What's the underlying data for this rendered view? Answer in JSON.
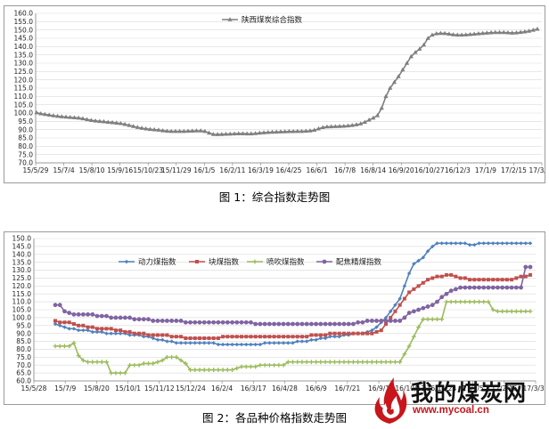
{
  "figure1_caption": "图 1：综合指数走势图",
  "figure2_caption": "图 2：各品种价格指数走势图",
  "watermark": {
    "name": "我的煤炭网",
    "url": "www.mycoal.cn"
  },
  "colors": {
    "composite": "#7f7f7f",
    "power": "#4f81bd",
    "lump": "#c0504d",
    "injection": "#9bbb59",
    "coking": "#8064a2",
    "grid": "#d9d9d9",
    "axis": "#808080"
  },
  "chart_data": [
    {
      "type": "line",
      "title": "",
      "xlabel": "",
      "ylabel": "",
      "ylim": [
        70,
        160
      ],
      "yticks": [
        "70.0",
        "75.0",
        "80.0",
        "85.0",
        "90.0",
        "95.0",
        "100.0",
        "105.0",
        "110.0",
        "115.0",
        "120.0",
        "125.0",
        "130.0",
        "135.0",
        "140.0",
        "145.0",
        "150.0",
        "155.0",
        "160.0"
      ],
      "x_tick_labels": [
        "15/5/29",
        "15/7/4",
        "15/8/10",
        "15/9/16",
        "15/10/23",
        "15/11/29",
        "16/1/5",
        "16/2/11",
        "16/3/19",
        "16/4/25",
        "16/6/1",
        "16/7/8",
        "16/8/14",
        "16/9/20",
        "16/10/27",
        "16/12/3",
        "17/1/9",
        "17/2/15",
        "17/3/24"
      ],
      "grid": "horizontal",
      "legend_position": "top-center",
      "series": [
        {
          "name": "陕西煤炭综合指数",
          "marker": "triangle",
          "values": [
            100.2,
            99.6,
            99.2,
            98.8,
            98.4,
            98.1,
            97.8,
            97.6,
            97.4,
            97.2,
            97.0,
            96.6,
            96.1,
            95.6,
            95.3,
            95.0,
            94.8,
            94.5,
            94.3,
            94.0,
            93.7,
            93.2,
            92.6,
            92.0,
            91.4,
            90.9,
            90.5,
            90.2,
            90.0,
            89.8,
            89.4,
            89.1,
            89.0,
            89.0,
            89.0,
            89.0,
            89.1,
            89.2,
            89.3,
            89.3,
            89.0,
            88.0,
            87.2,
            87.1,
            87.2,
            87.3,
            87.4,
            87.5,
            87.6,
            87.6,
            87.5,
            87.5,
            87.7,
            88.0,
            88.2,
            88.4,
            88.5,
            88.6,
            88.7,
            88.8,
            88.9,
            88.9,
            89.0,
            89.0,
            89.1,
            89.3,
            89.7,
            90.5,
            91.3,
            91.7,
            91.8,
            91.9,
            92.0,
            92.1,
            92.3,
            92.6,
            93.0,
            93.5,
            94.5,
            95.8,
            97.0,
            98.5,
            103.0,
            110.0,
            115.0,
            118.5,
            122.0,
            126.0,
            130.0,
            134.0,
            136.5,
            138.5,
            141.0,
            145.0,
            147.0,
            147.8,
            148.0,
            147.9,
            147.6,
            147.2,
            147.0,
            147.0,
            147.1,
            147.3,
            147.5,
            147.8,
            148.0,
            148.2,
            148.4,
            148.5,
            148.5,
            148.5,
            148.4,
            148.2,
            148.3,
            148.6,
            148.9,
            149.3,
            149.9,
            150.5
          ]
        }
      ]
    },
    {
      "type": "line",
      "title": "",
      "xlabel": "",
      "ylabel": "",
      "ylim": [
        60,
        150
      ],
      "yticks": [
        "60.0",
        "65.0",
        "70.0",
        "75.0",
        "80.0",
        "85.0",
        "90.0",
        "95.0",
        "100.0",
        "105.0",
        "110.0",
        "115.0",
        "120.0",
        "125.0",
        "130.0",
        "135.0",
        "140.0",
        "145.0",
        "150.0"
      ],
      "x_tick_labels": [
        "15/5/28",
        "15/7/9",
        "15/8/20",
        "15/10/1",
        "15/11/12",
        "15/12/24",
        "16/2/4",
        "16/3/17",
        "16/4/28",
        "16/6/9",
        "16/7/21",
        "16/9/1",
        "16/10/13",
        "16/11/24",
        "17/1/5",
        "17/2/16",
        "17/3/30"
      ],
      "grid": "horizontal",
      "legend_position": "top-left",
      "series": [
        {
          "name": "动力煤指数",
          "marker": "diamond",
          "values": [
            96,
            95,
            94,
            93,
            93,
            92,
            92,
            92,
            91,
            91,
            91,
            90,
            90,
            90,
            90,
            90,
            89,
            89,
            89,
            88,
            88,
            87,
            86,
            86,
            85,
            85,
            84,
            84,
            84,
            84,
            84,
            84,
            84,
            84,
            84,
            83,
            83,
            83,
            83,
            83,
            83,
            83,
            83,
            83,
            83,
            84,
            84,
            84,
            84,
            84,
            84,
            84,
            85,
            85,
            85,
            86,
            86,
            87,
            87,
            88,
            88,
            88,
            89,
            89,
            90,
            90,
            90,
            91,
            92,
            94,
            97,
            100,
            104,
            108,
            112,
            120,
            128,
            134,
            136,
            138,
            142,
            145,
            147,
            147,
            147,
            147,
            147,
            147,
            147,
            146,
            146,
            147,
            147,
            147,
            147,
            147,
            147,
            147,
            147,
            147,
            147,
            147,
            147
          ]
        },
        {
          "name": "块煤指数",
          "marker": "square",
          "values": [
            98,
            97,
            97,
            97,
            96,
            95,
            95,
            94,
            94,
            93,
            93,
            93,
            93,
            92,
            92,
            91,
            91,
            90,
            90,
            90,
            89,
            89,
            89,
            89,
            89,
            88,
            88,
            88,
            87,
            87,
            87,
            87,
            87,
            87,
            87,
            87,
            88,
            88,
            88,
            88,
            88,
            88,
            88,
            88,
            88,
            88,
            88,
            88,
            88,
            88,
            88,
            88,
            88,
            88,
            88,
            89,
            89,
            89,
            89,
            90,
            90,
            90,
            90,
            90,
            90,
            90,
            90,
            90,
            90,
            91,
            92,
            96,
            100,
            104,
            108,
            112,
            116,
            118,
            120,
            122,
            124,
            125,
            126,
            126,
            127,
            127,
            126,
            125,
            125,
            124,
            124,
            124,
            124,
            124,
            124,
            124,
            124,
            124,
            124,
            125,
            126,
            126,
            127
          ]
        },
        {
          "name": "喷吹煤指数",
          "marker": "plus",
          "values": [
            82,
            82,
            82,
            82,
            84,
            76,
            73,
            72,
            72,
            72,
            72,
            72,
            65,
            65,
            65,
            65,
            70,
            70,
            70,
            71,
            71,
            71,
            72,
            73,
            75,
            75,
            75,
            73,
            71,
            67,
            67,
            67,
            67,
            67,
            67,
            67,
            67,
            67,
            67,
            68,
            69,
            69,
            69,
            69,
            70,
            70,
            70,
            70,
            70,
            70,
            72,
            72,
            72,
            72,
            72,
            72,
            72,
            72,
            72,
            72,
            72,
            72,
            72,
            72,
            72,
            72,
            72,
            72,
            72,
            72,
            72,
            72,
            72,
            72,
            72,
            77,
            82,
            88,
            94,
            99,
            99,
            99,
            99,
            99,
            110,
            110,
            110,
            110,
            110,
            110,
            110,
            110,
            110,
            110,
            105,
            104,
            104,
            104,
            104,
            104,
            104,
            104,
            104
          ]
        },
        {
          "name": "配焦精煤指数",
          "marker": "circle",
          "values": [
            108,
            108,
            104,
            103,
            102,
            102,
            102,
            102,
            102,
            101,
            101,
            101,
            100,
            100,
            100,
            100,
            100,
            99,
            99,
            99,
            99,
            98,
            98,
            98,
            98,
            98,
            98,
            98,
            97,
            97,
            97,
            97,
            97,
            97,
            97,
            97,
            97,
            97,
            97,
            97,
            97,
            97,
            97,
            96,
            96,
            96,
            96,
            96,
            96,
            96,
            96,
            96,
            96,
            96,
            96,
            96,
            96,
            96,
            96,
            96,
            96,
            96,
            96,
            96,
            96,
            97,
            97,
            98,
            98,
            98,
            98,
            98,
            98,
            98,
            98,
            100,
            103,
            104,
            105,
            106,
            107,
            108,
            110,
            113,
            115,
            117,
            118,
            119,
            119,
            119,
            119,
            119,
            119,
            119,
            119,
            119,
            119,
            119,
            119,
            119,
            119,
            132,
            132
          ]
        }
      ]
    }
  ]
}
